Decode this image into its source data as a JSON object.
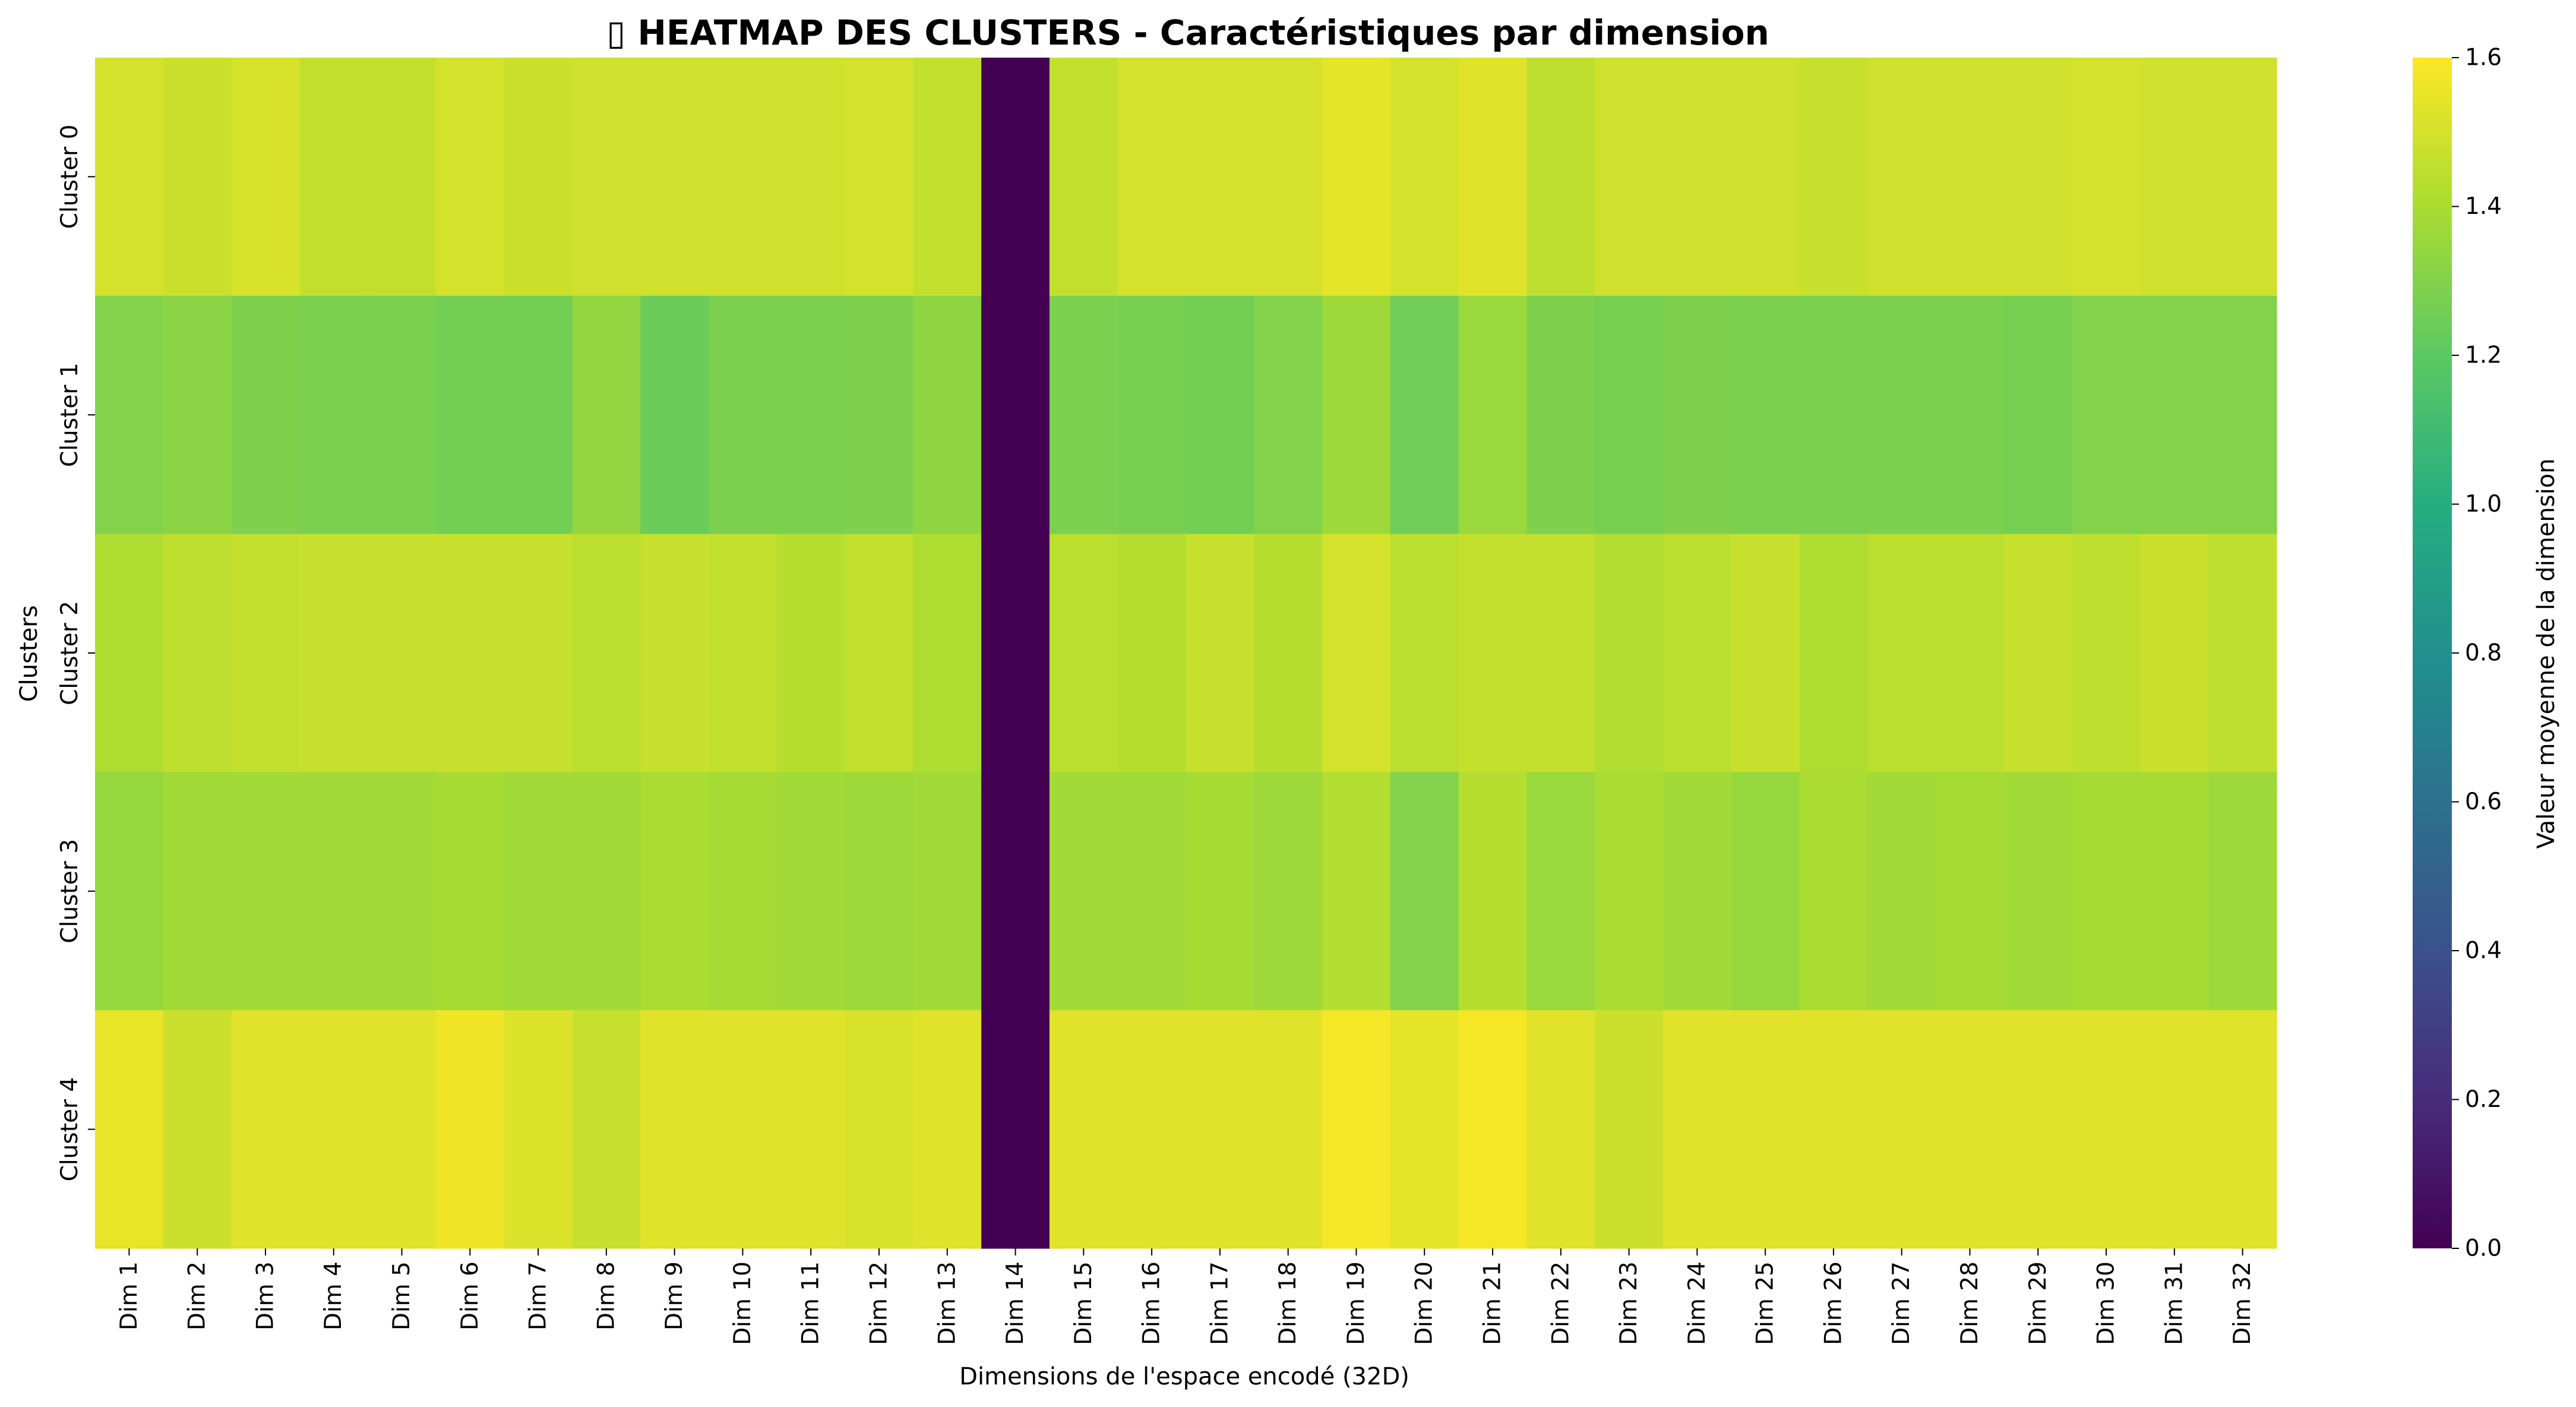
{
  "chart_data": {
    "type": "heatmap",
    "title": "\u0000 HEATMAP DES CLUSTERS - Caractéristiques par dimension",
    "title_glyph": "▯",
    "title_text": "HEATMAP DES CLUSTERS - Caractéristiques par dimension",
    "xlabel": "Dimensions de l'espace encodé (32D)",
    "ylabel": "Clusters",
    "colorbar_label": "Valeur moyenne de la dimension",
    "colormap": "viridis",
    "vmin": 0.0,
    "vmax": 1.6,
    "colorbar_ticks": [
      "0.0",
      "0.2",
      "0.4",
      "0.6",
      "0.8",
      "1.0",
      "1.2",
      "1.4",
      "1.6"
    ],
    "x_categories": [
      "Dim 1",
      "Dim 2",
      "Dim 3",
      "Dim 4",
      "Dim 5",
      "Dim 6",
      "Dim 7",
      "Dim 8",
      "Dim 9",
      "Dim 10",
      "Dim 11",
      "Dim 12",
      "Dim 13",
      "Dim 14",
      "Dim 15",
      "Dim 16",
      "Dim 17",
      "Dim 18",
      "Dim 19",
      "Dim 20",
      "Dim 21",
      "Dim 22",
      "Dim 23",
      "Dim 24",
      "Dim 25",
      "Dim 26",
      "Dim 27",
      "Dim 28",
      "Dim 29",
      "Dim 30",
      "Dim 31",
      "Dim 32"
    ],
    "y_categories": [
      "Cluster 0",
      "Cluster 1",
      "Cluster 2",
      "Cluster 3",
      "Cluster 4"
    ],
    "values": [
      [
        1.5,
        1.48,
        1.51,
        1.46,
        1.46,
        1.5,
        1.48,
        1.49,
        1.49,
        1.49,
        1.49,
        1.5,
        1.46,
        0.0,
        1.46,
        1.5,
        1.5,
        1.5,
        1.54,
        1.5,
        1.53,
        1.45,
        1.49,
        1.49,
        1.49,
        1.47,
        1.49,
        1.49,
        1.49,
        1.5,
        1.49,
        1.49
      ],
      [
        1.3,
        1.32,
        1.29,
        1.28,
        1.28,
        1.26,
        1.26,
        1.34,
        1.24,
        1.28,
        1.28,
        1.29,
        1.33,
        0.0,
        1.28,
        1.27,
        1.26,
        1.3,
        1.37,
        1.25,
        1.36,
        1.29,
        1.27,
        1.29,
        1.28,
        1.28,
        1.28,
        1.28,
        1.27,
        1.3,
        1.3,
        1.3
      ],
      [
        1.41,
        1.45,
        1.46,
        1.47,
        1.47,
        1.47,
        1.47,
        1.44,
        1.47,
        1.46,
        1.43,
        1.46,
        1.41,
        0.0,
        1.44,
        1.43,
        1.47,
        1.43,
        1.5,
        1.44,
        1.46,
        1.46,
        1.42,
        1.44,
        1.47,
        1.41,
        1.44,
        1.44,
        1.47,
        1.45,
        1.48,
        1.45
      ],
      [
        1.35,
        1.38,
        1.38,
        1.38,
        1.38,
        1.39,
        1.38,
        1.38,
        1.4,
        1.39,
        1.38,
        1.37,
        1.38,
        0.0,
        1.38,
        1.38,
        1.39,
        1.37,
        1.42,
        1.3,
        1.43,
        1.36,
        1.4,
        1.38,
        1.35,
        1.4,
        1.38,
        1.39,
        1.38,
        1.39,
        1.39,
        1.37
      ],
      [
        1.55,
        1.48,
        1.53,
        1.53,
        1.53,
        1.57,
        1.52,
        1.47,
        1.53,
        1.53,
        1.53,
        1.51,
        1.53,
        0.0,
        1.53,
        1.53,
        1.53,
        1.53,
        1.58,
        1.54,
        1.58,
        1.53,
        1.48,
        1.53,
        1.53,
        1.53,
        1.53,
        1.53,
        1.53,
        1.53,
        1.53,
        1.53
      ]
    ]
  }
}
